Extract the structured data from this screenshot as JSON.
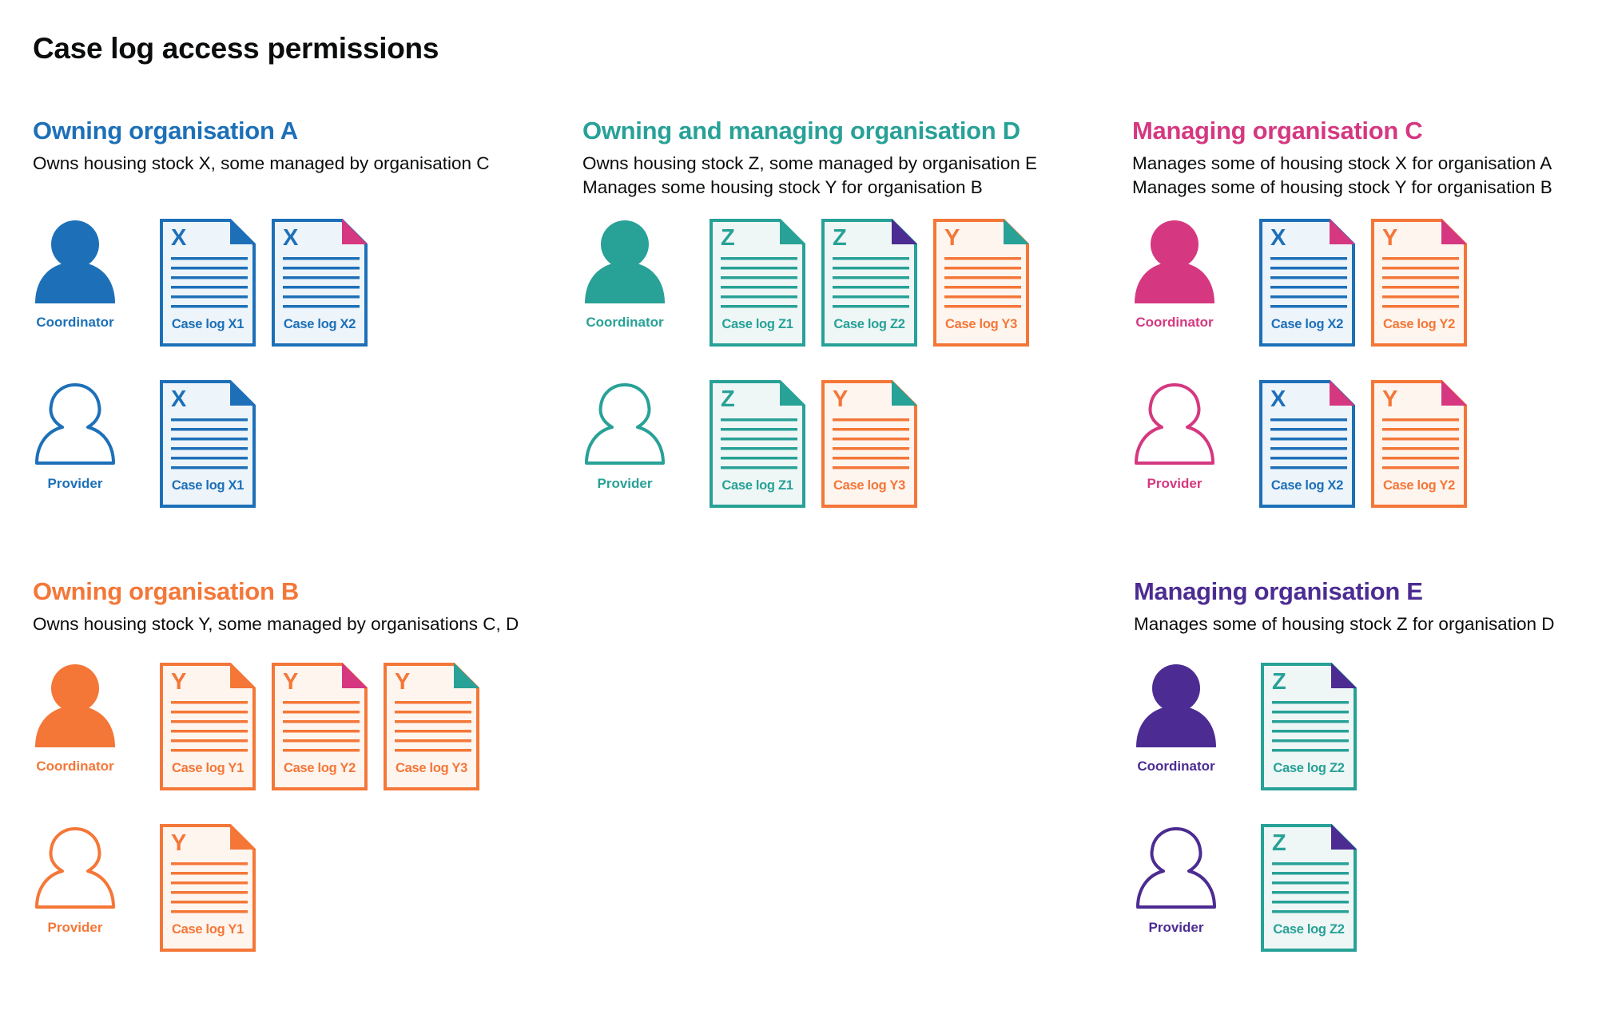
{
  "title": "Case log access permissions",
  "colors": {
    "blue": "#1d70b8",
    "teal": "#28a197",
    "pink": "#d53880",
    "orange": "#f47738",
    "purple": "#4c2c92"
  },
  "sections": [
    {
      "title": "Owning organisation A",
      "color": "blue",
      "description": [
        "Owns housing stock X, some managed by organisation C"
      ],
      "roles": [
        {
          "label": "Coordinator",
          "filled": true,
          "docs": [
            {
              "letter": "X",
              "label": "Case log X1",
              "color": "blue",
              "corner": "blue"
            },
            {
              "letter": "X",
              "label": "Case log X2",
              "color": "blue",
              "corner": "pink"
            }
          ]
        },
        {
          "label": "Provider",
          "filled": false,
          "docs": [
            {
              "letter": "X",
              "label": "Case log X1",
              "color": "blue",
              "corner": "blue"
            }
          ]
        }
      ]
    },
    {
      "title": "Owning and managing organisation D",
      "color": "teal",
      "description": [
        "Owns housing stock Z, some managed by organisation E",
        "Manages some housing stock Y for organisation B"
      ],
      "roles": [
        {
          "label": "Coordinator",
          "filled": true,
          "docs": [
            {
              "letter": "Z",
              "label": "Case log Z1",
              "color": "teal",
              "corner": "teal"
            },
            {
              "letter": "Z",
              "label": "Case log Z2",
              "color": "teal",
              "corner": "purple"
            },
            {
              "letter": "Y",
              "label": "Case log Y3",
              "color": "orange",
              "corner": "teal"
            }
          ]
        },
        {
          "label": "Provider",
          "filled": false,
          "docs": [
            {
              "letter": "Z",
              "label": "Case log Z1",
              "color": "teal",
              "corner": "teal"
            },
            {
              "letter": "Y",
              "label": "Case log Y3",
              "color": "orange",
              "corner": "teal"
            }
          ]
        }
      ]
    },
    {
      "title": "Managing organisation C",
      "color": "pink",
      "description": [
        "Manages some of housing stock X for organisation A",
        "Manages some of housing stock Y for organisation B"
      ],
      "roles": [
        {
          "label": "Coordinator",
          "filled": true,
          "docs": [
            {
              "letter": "X",
              "label": "Case log X2",
              "color": "blue",
              "corner": "pink"
            },
            {
              "letter": "Y",
              "label": "Case log Y2",
              "color": "orange",
              "corner": "pink"
            }
          ]
        },
        {
          "label": "Provider",
          "filled": false,
          "docs": [
            {
              "letter": "X",
              "label": "Case log X2",
              "color": "blue",
              "corner": "pink"
            },
            {
              "letter": "Y",
              "label": "Case log Y2",
              "color": "orange",
              "corner": "pink"
            }
          ]
        }
      ]
    },
    {
      "title": "Owning organisation B",
      "color": "orange",
      "description": [
        "Owns housing stock Y, some managed by organisations C, D"
      ],
      "roles": [
        {
          "label": "Coordinator",
          "filled": true,
          "docs": [
            {
              "letter": "Y",
              "label": "Case log Y1",
              "color": "orange",
              "corner": "orange"
            },
            {
              "letter": "Y",
              "label": "Case log Y2",
              "color": "orange",
              "corner": "pink"
            },
            {
              "letter": "Y",
              "label": "Case log Y3",
              "color": "orange",
              "corner": "teal"
            }
          ]
        },
        {
          "label": "Provider",
          "filled": false,
          "docs": [
            {
              "letter": "Y",
              "label": "Case log Y1",
              "color": "orange",
              "corner": "orange"
            }
          ]
        }
      ]
    },
    {
      "title": "Managing organisation E",
      "color": "purple",
      "description": [
        "Manages some of housing stock Z for organisation D"
      ],
      "roles": [
        {
          "label": "Coordinator",
          "filled": true,
          "docs": [
            {
              "letter": "Z",
              "label": "Case log Z2",
              "color": "teal",
              "corner": "purple"
            }
          ]
        },
        {
          "label": "Provider",
          "filled": false,
          "docs": [
            {
              "letter": "Z",
              "label": "Case log Z2",
              "color": "teal",
              "corner": "purple"
            }
          ]
        }
      ]
    }
  ]
}
